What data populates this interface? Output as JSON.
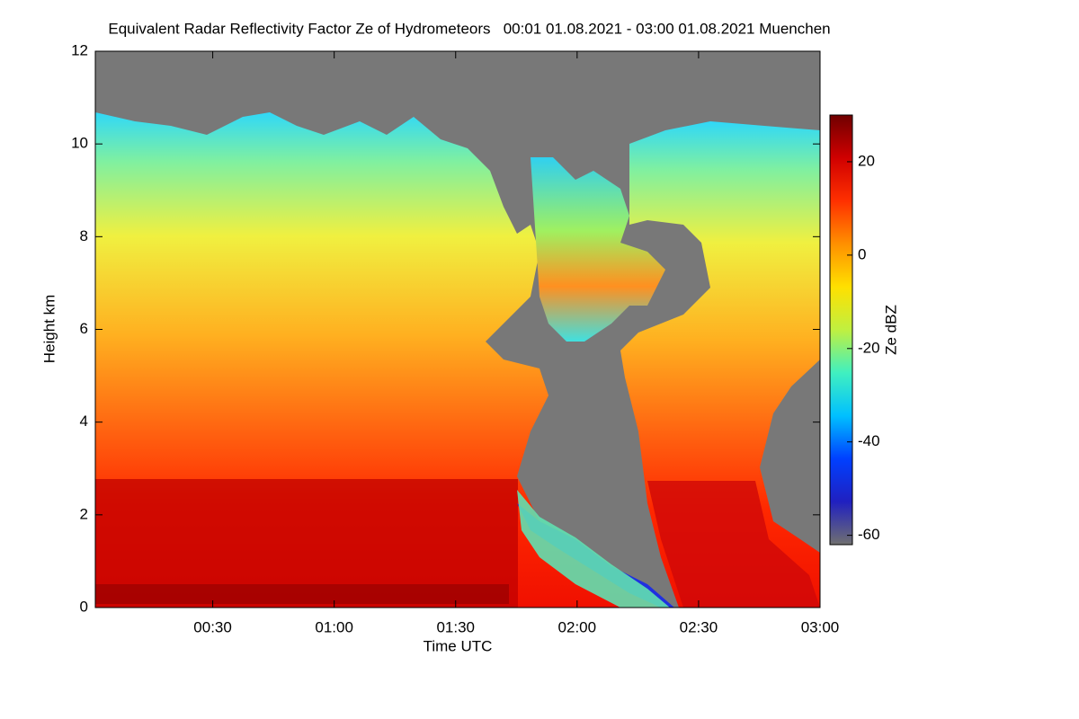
{
  "chart_data": {
    "type": "time-height",
    "title": "Equivalent Radar Reflectivity Factor Ze of Hydrometeors   00:01 01.08.2021 - 03:00 01.08.2021 Muenchen",
    "xlabel": "Time UTC",
    "ylabel": "Height km",
    "xlim": [
      1,
      180
    ],
    "xticks": [
      {
        "value": 30,
        "label": "00:30"
      },
      {
        "value": 60,
        "label": "01:00"
      },
      {
        "value": 90,
        "label": "01:30"
      },
      {
        "value": 120,
        "label": "02:00"
      },
      {
        "value": 150,
        "label": "02:30"
      },
      {
        "value": 180,
        "label": "03:00"
      }
    ],
    "ylim": [
      0,
      12
    ],
    "yticks": [
      0,
      2,
      4,
      6,
      8,
      10,
      12
    ],
    "colorbar": {
      "label": "Ze dBZ",
      "lim": [
        -62,
        30
      ],
      "ticks": [
        -60,
        -40,
        -20,
        0,
        20
      ],
      "colors": [
        "#707070",
        "#2020c0",
        "#0040ff",
        "#00c0ff",
        "#40f0c0",
        "#c0f040",
        "#ffe000",
        "#ff9000",
        "#ff3000",
        "#d00000",
        "#700000"
      ]
    }
  }
}
